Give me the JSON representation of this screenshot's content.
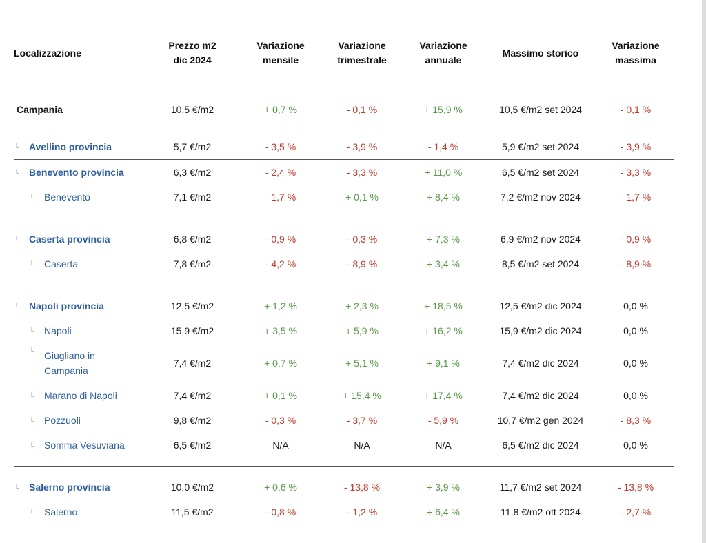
{
  "headers": {
    "loc": "Localizzazione",
    "price_1": "Prezzo m2",
    "price_2": "dic 2024",
    "mens_1": "Variazione",
    "mens_2": "mensile",
    "trim_1": "Variazione",
    "trim_2": "trimestrale",
    "ann_1": "Variazione",
    "ann_2": "annuale",
    "max": "Massimo storico",
    "vmax_1": "Variazione",
    "vmax_2": "massima"
  },
  "colors": {
    "positive": "#5a9a4a",
    "negative": "#c0392b",
    "link": "#2d5fa0"
  },
  "rows": [
    {
      "name": "Campania",
      "price": "10,5 €/m2",
      "mens": "+ 0,7 %",
      "trim": "- 0,1 %",
      "ann": "+ 15,9 %",
      "max": "10,5 €/m2 set 2024",
      "vmax": "- 0,1 %"
    },
    {
      "name": "Avellino provincia",
      "price": "5,7 €/m2",
      "mens": "- 3,5 %",
      "trim": "- 3,9 %",
      "ann": "- 1,4 %",
      "max": "5,9 €/m2 set 2024",
      "vmax": "- 3,9 %"
    },
    {
      "name": "Benevento provincia",
      "price": "6,3 €/m2",
      "mens": "- 2,4 %",
      "trim": "- 3,3 %",
      "ann": "+ 11,0 %",
      "max": "6,5 €/m2 set 2024",
      "vmax": "- 3,3 %"
    },
    {
      "name": "Benevento",
      "price": "7,1 €/m2",
      "mens": "- 1,7 %",
      "trim": "+ 0,1 %",
      "ann": "+ 8,4 %",
      "max": "7,2 €/m2 nov 2024",
      "vmax": "- 1,7 %"
    },
    {
      "name": "Caserta provincia",
      "price": "6,8 €/m2",
      "mens": "- 0,9 %",
      "trim": "- 0,3 %",
      "ann": "+ 7,3 %",
      "max": "6,9 €/m2 nov 2024",
      "vmax": "- 0,9 %"
    },
    {
      "name": "Caserta",
      "price": "7,8 €/m2",
      "mens": "- 4,2 %",
      "trim": "- 8,9 %",
      "ann": "+ 3,4 %",
      "max": "8,5 €/m2 set 2024",
      "vmax": "- 8,9 %"
    },
    {
      "name": "Napoli provincia",
      "price": "12,5 €/m2",
      "mens": "+ 1,2 %",
      "trim": "+ 2,3 %",
      "ann": "+ 18,5 %",
      "max": "12,5 €/m2 dic 2024",
      "vmax": "0,0 %"
    },
    {
      "name": "Napoli",
      "price": "15,9 €/m2",
      "mens": "+ 3,5 %",
      "trim": "+ 5,9 %",
      "ann": "+ 16,2 %",
      "max": "15,9 €/m2 dic 2024",
      "vmax": "0,0 %"
    },
    {
      "name_1": "Giugliano in",
      "name_2": "Campania",
      "price": "7,4 €/m2",
      "mens": "+ 0,7 %",
      "trim": "+ 5,1 %",
      "ann": "+ 9,1 %",
      "max": "7,4 €/m2 dic 2024",
      "vmax": "0,0 %"
    },
    {
      "name": "Marano di Napoli",
      "price": "7,4 €/m2",
      "mens": "+ 0,1 %",
      "trim": "+ 15,4 %",
      "ann": "+ 17,4 %",
      "max": "7,4 €/m2 dic 2024",
      "vmax": "0,0 %"
    },
    {
      "name": "Pozzuoli",
      "price": "9,8 €/m2",
      "mens": "- 0,3 %",
      "trim": "- 3,7 %",
      "ann": "- 5,9 %",
      "max": "10,7 €/m2 gen 2024",
      "vmax": "- 8,3 %"
    },
    {
      "name": "Somma Vesuviana",
      "price": "6,5 €/m2",
      "mens": "N/A",
      "trim": "N/A",
      "ann": "N/A",
      "max": "6,5 €/m2 dic 2024",
      "vmax": "0,0 %"
    },
    {
      "name": "Salerno provincia",
      "price": "10,0 €/m2",
      "mens": "+ 0,6 %",
      "trim": "- 13,8 %",
      "ann": "+ 3,9 %",
      "max": "11,7 €/m2 set 2024",
      "vmax": "- 13,8 %"
    },
    {
      "name": "Salerno",
      "price": "11,5 €/m2",
      "mens": "- 0,8 %",
      "trim": "- 1,2 %",
      "ann": "+ 6,4 %",
      "max": "11,8 €/m2 ott 2024",
      "vmax": "- 2,7 %"
    }
  ]
}
